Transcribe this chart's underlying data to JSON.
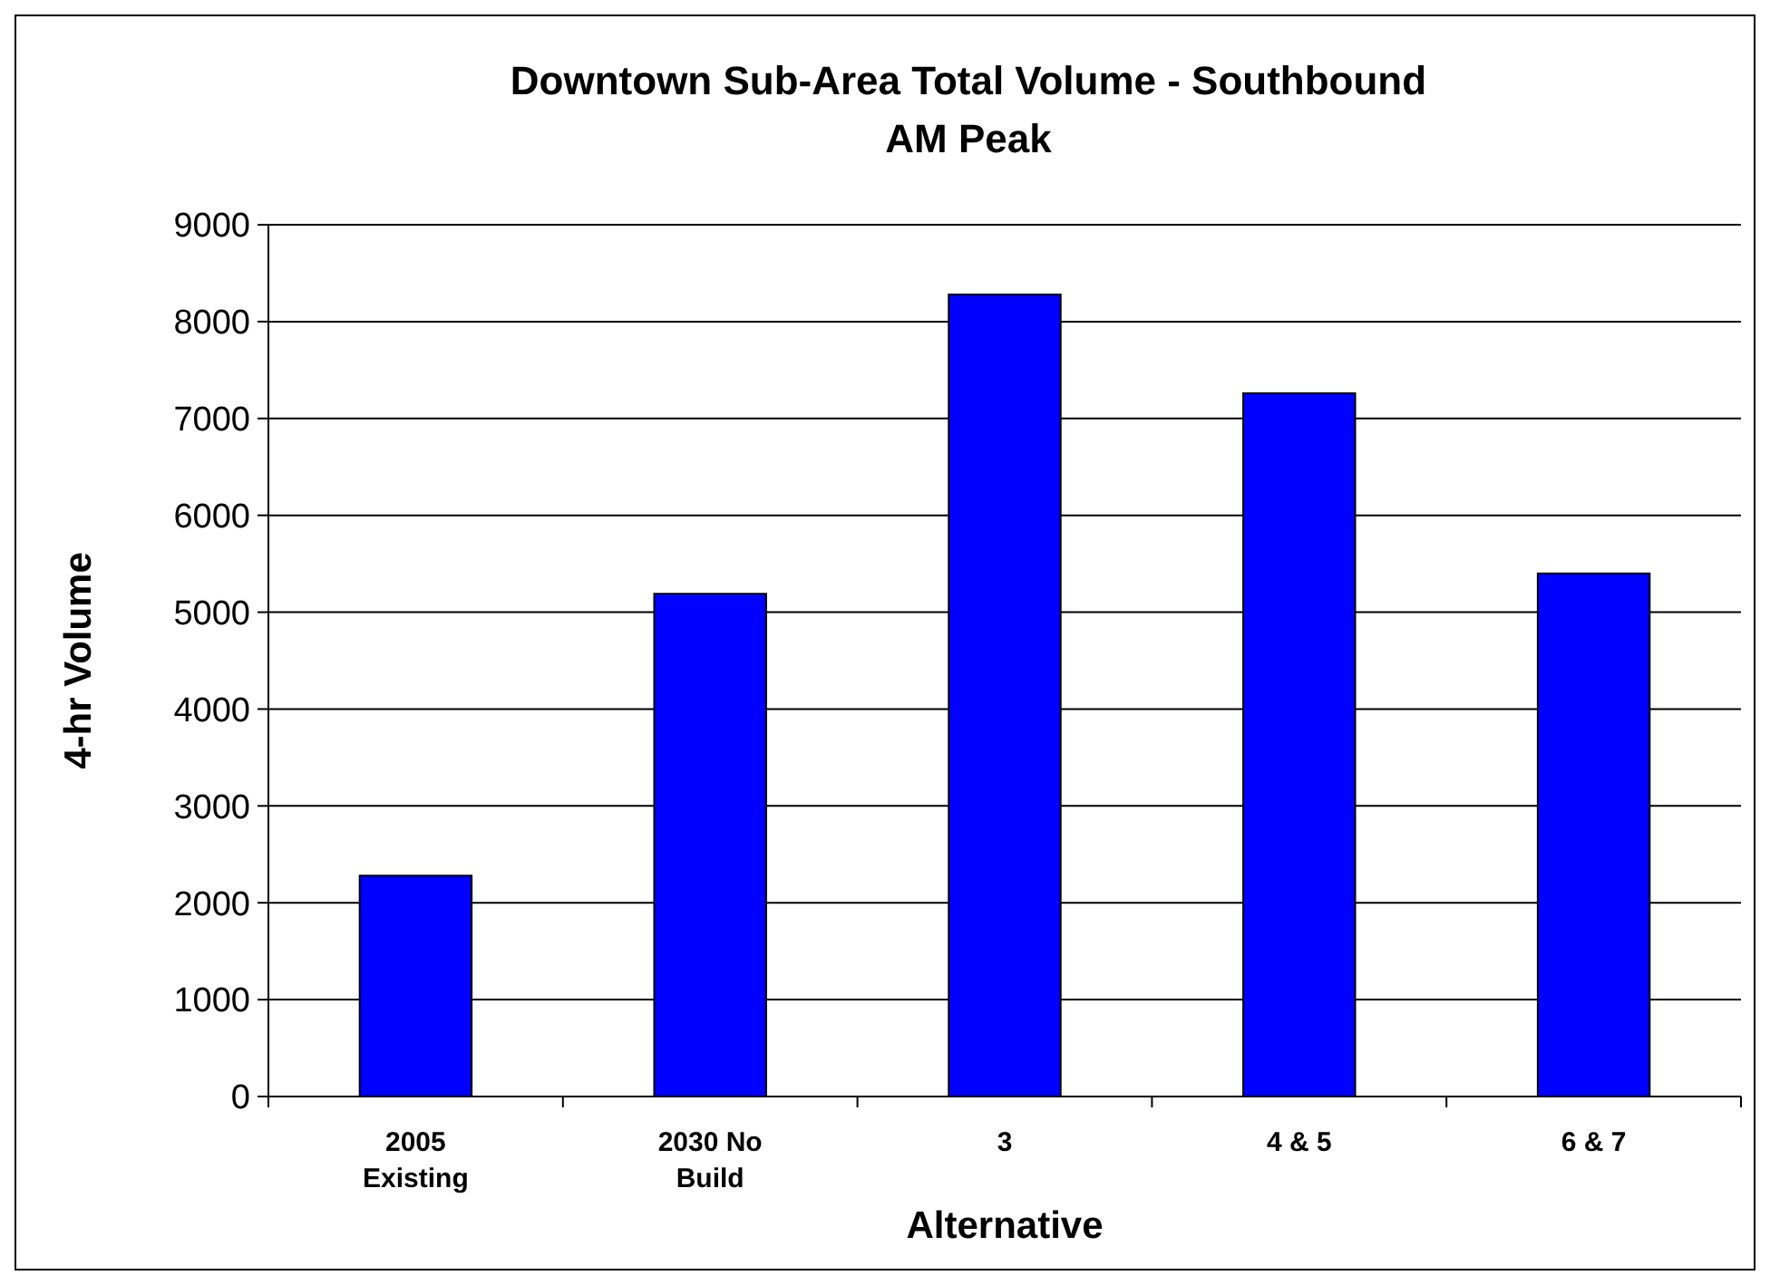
{
  "chart_data": {
    "type": "bar",
    "title": "Downtown Sub-Area Total Volume - Southbound",
    "subtitle": "AM Peak",
    "xlabel": "Alternative",
    "ylabel": "4-hr Volume",
    "categories": [
      "2005 Existing",
      "2030 No Build",
      "3",
      "4 & 5",
      "6 & 7"
    ],
    "values": [
      2280,
      5190,
      8280,
      7260,
      5400
    ],
    "color": "#0000ff",
    "ylim": [
      0,
      9000
    ],
    "yticks": [
      0,
      1000,
      2000,
      3000,
      4000,
      5000,
      6000,
      7000,
      8000,
      9000
    ],
    "grid": "y"
  }
}
